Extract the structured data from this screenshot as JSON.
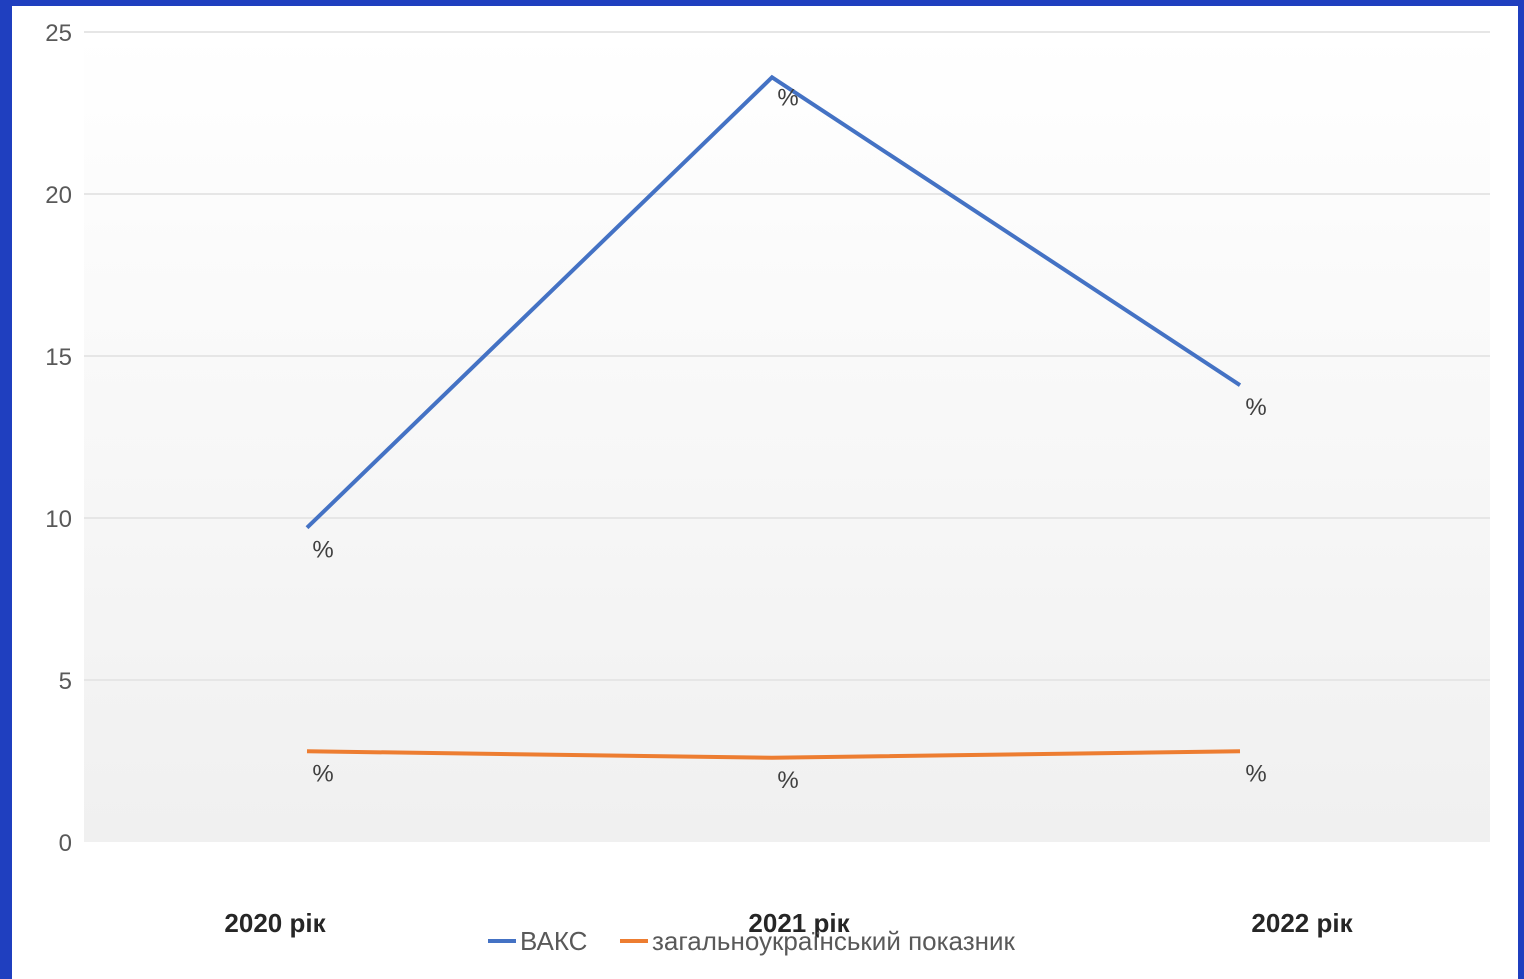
{
  "colors": {
    "border": "#1f3fbf",
    "plot_background_top": "#ffffff",
    "plot_background_bottom": "#f0f0f0",
    "gridline": "#e6e6e6",
    "series_vaks": "#4472c4",
    "series_national": "#ed7d31"
  },
  "chart_data": {
    "type": "line",
    "title": "",
    "xlabel": "",
    "ylabel": "",
    "categories": [
      "2020 рік",
      "2021 рік",
      "2022 рік"
    ],
    "ylim": [
      0,
      25
    ],
    "yticks": [
      0,
      5,
      10,
      15,
      20,
      25
    ],
    "grid": true,
    "legend_position": "bottom",
    "data_label_text": "%",
    "series": [
      {
        "name": "ВАКС",
        "values": [
          9.7,
          23.6,
          14.1
        ],
        "color": "#4472c4"
      },
      {
        "name": "загальноукраїнський показник",
        "values": [
          2.8,
          2.6,
          2.8
        ],
        "color": "#ed7d31"
      }
    ]
  }
}
